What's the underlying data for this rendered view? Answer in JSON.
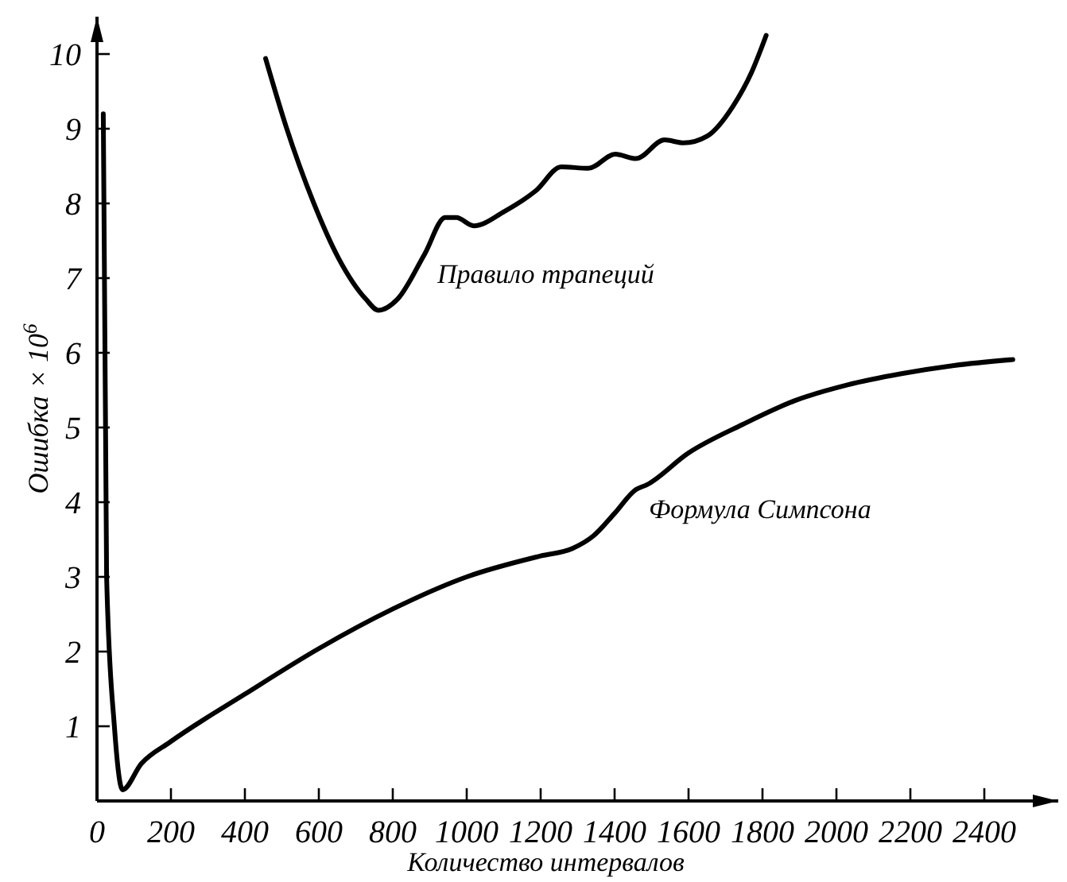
{
  "chart_data": {
    "type": "line",
    "xlabel": "Количество интервалов",
    "ylabel": "Ошибка × 10$^{6}$",
    "xlim": [
      0,
      2600
    ],
    "ylim": [
      0,
      10.5
    ],
    "xticks": [
      0,
      200,
      400,
      600,
      800,
      1000,
      1200,
      1400,
      1600,
      1800,
      2000,
      2200,
      2400
    ],
    "yticks": [
      1,
      2,
      3,
      4,
      5,
      6,
      7,
      8,
      9,
      10
    ],
    "grid": false,
    "marker": "none",
    "line_style": "solid",
    "annotations": [
      {
        "text": "Правило трапеций",
        "x": 886,
        "y": 7.32
      },
      {
        "text": "Формула Симпсона",
        "x": 1458,
        "y": 4.17
      }
    ],
    "series": [
      {
        "color": "#000000",
        "x": [
          17,
          26,
          47,
          69,
          120,
          198,
          400,
          600,
          800,
          1000,
          1200,
          1286,
          1343,
          1400,
          1458,
          1486,
          1600,
          1746,
          1888,
          2030,
          2176,
          2318,
          2477
        ],
        "values": [
          9.2,
          3,
          1,
          0.15,
          0.5,
          0.79,
          1.43,
          2.04,
          2.57,
          3.0,
          3.28,
          3.38,
          3.55,
          3.85,
          4.17,
          4.23,
          4.66,
          5.04,
          5.36,
          5.57,
          5.72,
          5.83,
          5.91
        ]
      },
      {
        "color": "#000000",
        "x": [
          456,
          512,
          585,
          654,
          727,
          761,
          813,
          886,
          942,
          972,
          1019,
          1101,
          1187,
          1256,
          1329,
          1402,
          1458,
          1535,
          1587,
          1650,
          1720,
          1770,
          1810
        ],
        "values": [
          9.94,
          9.02,
          8.02,
          7.26,
          6.72,
          6.57,
          6.72,
          7.32,
          7.81,
          7.81,
          7.7,
          7.89,
          8.17,
          8.49,
          8.47,
          8.66,
          8.6,
          8.85,
          8.81,
          8.9,
          9.3,
          9.75,
          10.25
        ]
      }
    ]
  }
}
